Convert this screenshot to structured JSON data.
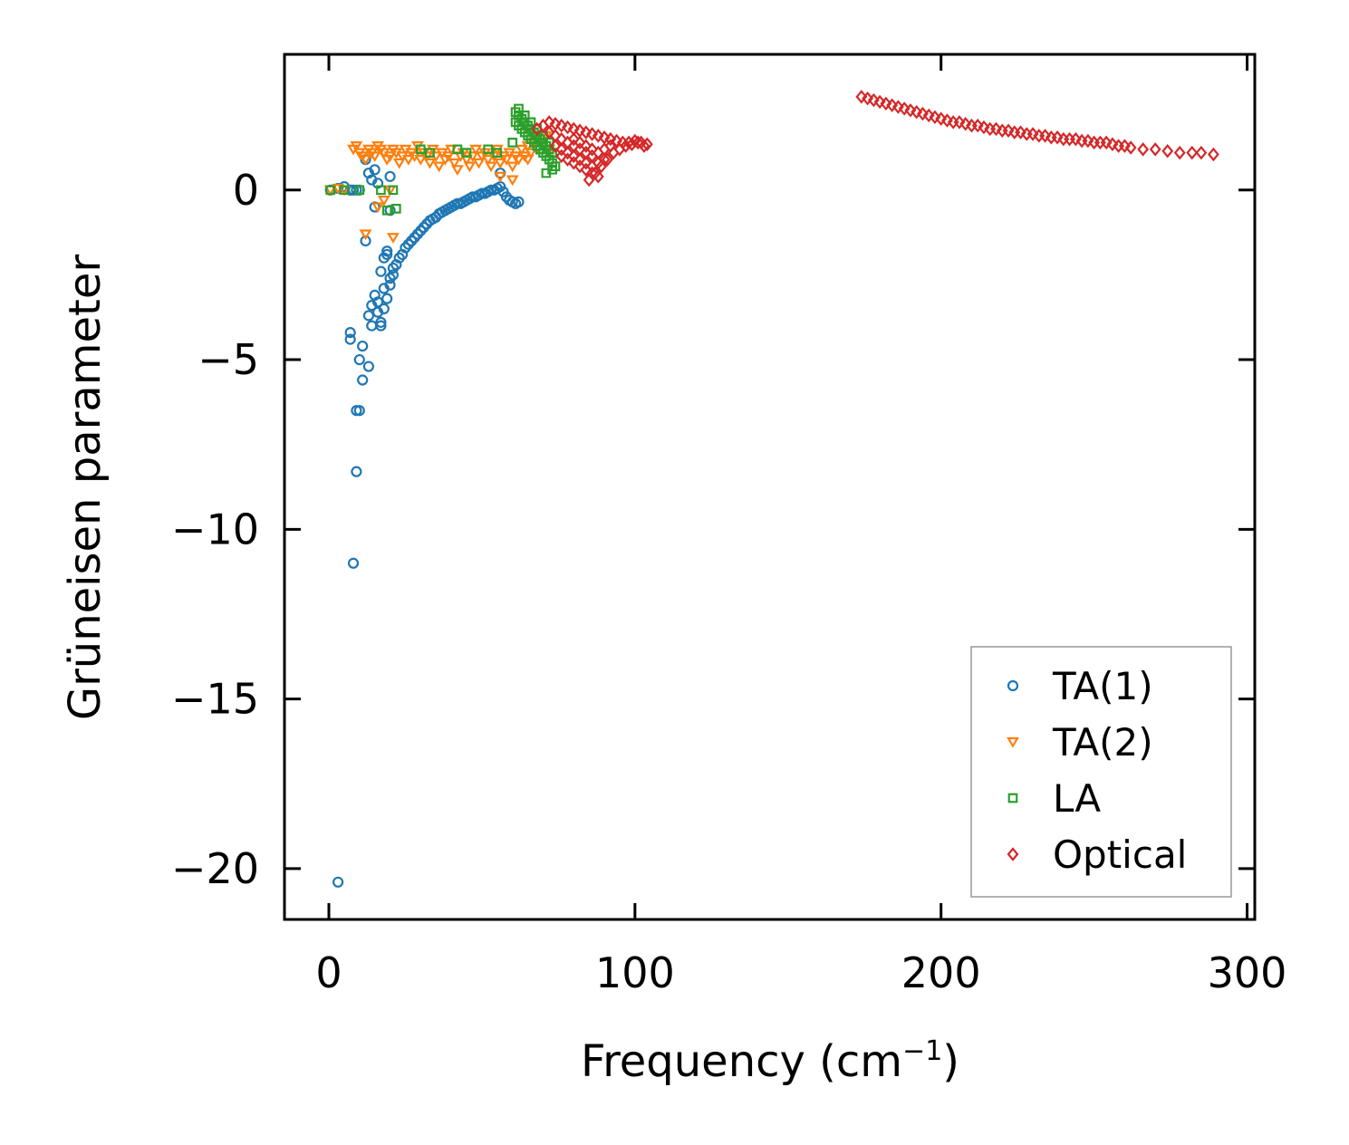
{
  "chart_data": {
    "type": "scatter",
    "title": "",
    "xlabel": "Frequency (cm",
    "xlabel_sup": "−1",
    "xlabel_end": ")",
    "ylabel": "Grüneisen parameter",
    "xlim": [
      -14.5,
      302.5
    ],
    "ylim": [
      -21.5,
      4.0
    ],
    "xticks": [
      0,
      100,
      200,
      300
    ],
    "xtick_labels": [
      "0",
      "100",
      "200",
      "300"
    ],
    "yticks": [
      0,
      -5,
      -10,
      -15,
      -20
    ],
    "ytick_labels": [
      "0",
      "−5",
      "−10",
      "−15",
      "−20"
    ],
    "legend_position": "bottom-right",
    "series": [
      {
        "name": "TA(1)",
        "marker": "circle",
        "color": "#1f77b4",
        "x": [
          0.5,
          3,
          5,
          7,
          8,
          9,
          10,
          11,
          12,
          13,
          14,
          15,
          16,
          17,
          18,
          19,
          20,
          21,
          3,
          7,
          7,
          9,
          10,
          11,
          13,
          14,
          15,
          16,
          17,
          18,
          19,
          20,
          21,
          22,
          23,
          24,
          25,
          26,
          27,
          28,
          29,
          30,
          31,
          32,
          33,
          34,
          35,
          36,
          37,
          38,
          39,
          40,
          41,
          42,
          43,
          44,
          45,
          46,
          47,
          48,
          49,
          50,
          51,
          52,
          53,
          54,
          55,
          56,
          57,
          58,
          59,
          60,
          61,
          62,
          7,
          8,
          9,
          10,
          12,
          13,
          14,
          15,
          16,
          17,
          18,
          19,
          20,
          56,
          20
        ],
        "y": [
          0.0,
          0.05,
          0.1,
          0.0,
          -11.0,
          -8.3,
          -6.5,
          -5.6,
          0.9,
          0.5,
          0.3,
          0.6,
          0.2,
          -4.0,
          -3.5,
          -3.2,
          -2.8,
          -2.5,
          -20.4,
          -4.2,
          -4.4,
          -6.5,
          -5.0,
          -4.6,
          -3.7,
          -3.4,
          -3.1,
          -3.6,
          -3.9,
          -2.0,
          -1.8,
          -2.6,
          -2.3,
          -2.2,
          -2.0,
          -1.9,
          -1.7,
          -1.6,
          -1.5,
          -1.4,
          -1.3,
          -1.2,
          -1.1,
          -1.0,
          -0.9,
          -0.85,
          -0.8,
          -0.7,
          -0.65,
          -0.6,
          -0.55,
          -0.5,
          -0.45,
          -0.4,
          -0.4,
          -0.35,
          -0.3,
          -0.25,
          -0.2,
          -0.2,
          -0.15,
          -0.1,
          -0.1,
          -0.05,
          0.0,
          0.0,
          0.05,
          0.1,
          -0.05,
          -0.2,
          -0.3,
          -0.35,
          -0.4,
          -0.35,
          0.0,
          0.0,
          0.0,
          0.0,
          -1.5,
          -5.2,
          -4.0,
          -0.5,
          -3.3,
          -2.4,
          -2.9,
          -1.9,
          -0.6,
          0.5,
          0.4
        ]
      },
      {
        "name": "TA(2)",
        "marker": "triangle-down",
        "color": "#ff7f0e",
        "x": [
          0.5,
          3,
          5,
          8,
          9,
          10,
          11,
          12,
          13,
          14,
          15,
          16,
          17,
          18,
          19,
          20,
          21,
          22,
          23,
          24,
          25,
          26,
          27,
          28,
          29,
          30,
          31,
          32,
          33,
          34,
          35,
          36,
          37,
          38,
          39,
          40,
          41,
          42,
          43,
          44,
          45,
          46,
          47,
          48,
          49,
          50,
          51,
          52,
          53,
          54,
          55,
          56,
          57,
          58,
          59,
          60,
          61,
          62,
          63,
          64,
          65,
          66,
          67,
          68,
          69,
          70,
          71,
          72,
          12,
          16,
          18,
          21,
          20,
          65,
          56,
          60
        ],
        "y": [
          0.0,
          0.05,
          0.0,
          1.2,
          1.3,
          1.1,
          1.0,
          0.9,
          1.2,
          1.1,
          1.0,
          1.3,
          1.2,
          1.1,
          0.9,
          1.0,
          1.2,
          1.1,
          0.8,
          1.0,
          1.2,
          0.9,
          1.1,
          1.0,
          1.3,
          0.9,
          1.1,
          1.0,
          0.8,
          1.2,
          1.0,
          0.7,
          1.1,
          0.9,
          1.0,
          1.2,
          0.8,
          0.6,
          1.0,
          1.1,
          0.9,
          0.7,
          1.0,
          1.2,
          0.8,
          1.0,
          1.1,
          0.9,
          0.7,
          1.0,
          1.2,
          0.8,
          1.0,
          0.9,
          1.1,
          0.7,
          1.0,
          0.9,
          1.2,
          1.0,
          1.3,
          1.1,
          1.4,
          1.2,
          1.5,
          1.3,
          1.6,
          1.2,
          -1.3,
          -0.5,
          -0.3,
          -1.4,
          0.0,
          0.9,
          0.4,
          0.3
        ]
      },
      {
        "name": "LA",
        "marker": "square",
        "color": "#2ca02c",
        "x": [
          0.5,
          5,
          10,
          17,
          19,
          21,
          22,
          30,
          33,
          42,
          45,
          52,
          55,
          60,
          61,
          62,
          63,
          64,
          65,
          66,
          67,
          68,
          69,
          70,
          71,
          72,
          73,
          61,
          62,
          63,
          64,
          65,
          66,
          67,
          68,
          69,
          70,
          71,
          72,
          73,
          74,
          62,
          64,
          66,
          68,
          70,
          72,
          71,
          73
        ],
        "y": [
          0.0,
          0.0,
          0.0,
          0.0,
          -0.6,
          0.0,
          -0.55,
          1.2,
          1.1,
          1.2,
          1.1,
          1.2,
          1.1,
          1.4,
          2.3,
          2.2,
          2.1,
          2.0,
          1.9,
          1.8,
          1.7,
          1.6,
          1.5,
          1.4,
          1.3,
          1.2,
          1.1,
          2.0,
          1.9,
          1.8,
          1.7,
          1.6,
          1.5,
          1.4,
          1.3,
          1.2,
          1.1,
          1.0,
          0.9,
          0.8,
          0.7,
          2.4,
          2.2,
          2.0,
          1.8,
          1.6,
          1.4,
          0.5,
          0.6
        ]
      },
      {
        "name": "Optical",
        "marker": "diamond",
        "color": "#d62728",
        "x": [
          68,
          70,
          72,
          74,
          76,
          78,
          80,
          82,
          84,
          86,
          88,
          90,
          92,
          94,
          96,
          98,
          100,
          102,
          104,
          72,
          74,
          76,
          78,
          80,
          82,
          84,
          86,
          88,
          90,
          92,
          74,
          76,
          78,
          80,
          82,
          84,
          86,
          88,
          90,
          76,
          78,
          80,
          82,
          84,
          86,
          88,
          80,
          82,
          84,
          86,
          85,
          87,
          89,
          91,
          93,
          95,
          97,
          99,
          101,
          103,
          174,
          176,
          178,
          180,
          182,
          184,
          186,
          188,
          190,
          192,
          194,
          196,
          198,
          200,
          202,
          204,
          206,
          208,
          210,
          212,
          214,
          216,
          218,
          220,
          222,
          224,
          226,
          228,
          230,
          232,
          234,
          236,
          238,
          240,
          242,
          244,
          246,
          248,
          250,
          252,
          254,
          256,
          258,
          260,
          262,
          266,
          270,
          274,
          278,
          282,
          285,
          289
        ],
        "y": [
          1.8,
          1.9,
          2.0,
          1.95,
          1.9,
          1.85,
          1.8,
          1.75,
          1.7,
          1.65,
          1.6,
          1.55,
          1.5,
          1.45,
          1.4,
          1.4,
          1.45,
          1.4,
          1.35,
          1.7,
          1.6,
          1.5,
          1.4,
          1.3,
          1.2,
          1.1,
          1.0,
          1.1,
          1.2,
          1.3,
          1.3,
          1.2,
          1.1,
          1.0,
          0.9,
          0.8,
          0.7,
          0.8,
          0.9,
          1.0,
          0.9,
          0.8,
          0.7,
          0.6,
          0.5,
          0.4,
          1.5,
          1.4,
          1.3,
          1.2,
          0.3,
          0.5,
          0.7,
          0.9,
          1.1,
          1.2,
          1.3,
          1.35,
          1.4,
          1.3,
          2.75,
          2.7,
          2.65,
          2.6,
          2.55,
          2.5,
          2.45,
          2.4,
          2.35,
          2.3,
          2.25,
          2.2,
          2.15,
          2.1,
          2.05,
          2.0,
          2.0,
          1.95,
          1.9,
          1.9,
          1.85,
          1.8,
          1.8,
          1.75,
          1.75,
          1.7,
          1.7,
          1.65,
          1.65,
          1.6,
          1.6,
          1.55,
          1.55,
          1.5,
          1.5,
          1.5,
          1.45,
          1.45,
          1.4,
          1.4,
          1.4,
          1.35,
          1.3,
          1.3,
          1.25,
          1.2,
          1.2,
          1.15,
          1.1,
          1.1,
          1.1,
          1.05
        ]
      }
    ]
  }
}
